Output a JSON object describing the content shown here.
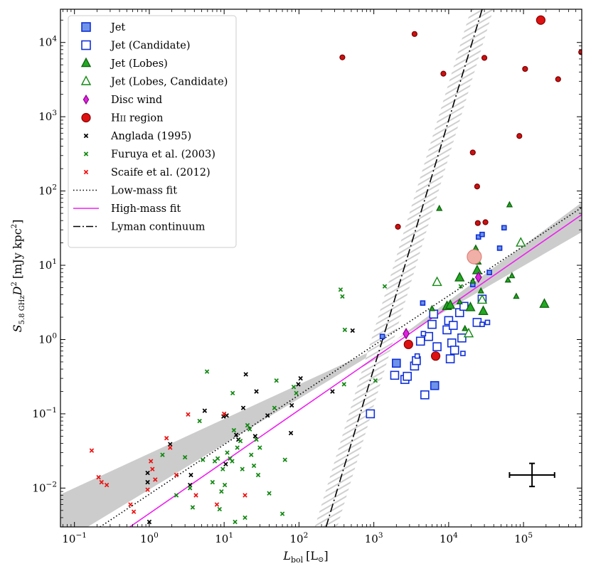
{
  "chart_data": {
    "type": "scatter",
    "xscale": "log",
    "yscale": "log",
    "xlabel": "L",
    "xlabel_sub": "bol",
    "xlabel_unit": "[L",
    "xlabel_unit_end": "]",
    "ylabel": "S",
    "ylabel_sub": "5.8 GHz",
    "ylabel_mid": "D",
    "ylabel_sup": "2",
    "ylabel_unit": "[mJy kpc",
    "ylabel_unit_sup": "2",
    "ylabel_unit_end": "]",
    "xlim": [
      0.065,
      600000
    ],
    "ylim": [
      0.003,
      28000
    ],
    "x_ticks": [
      {
        "value": 0.1,
        "base": "10",
        "exp": "−1"
      },
      {
        "value": 1,
        "base": "10",
        "exp": "0"
      },
      {
        "value": 10,
        "base": "10",
        "exp": "1"
      },
      {
        "value": 100,
        "base": "10",
        "exp": "2"
      },
      {
        "value": 1000,
        "base": "10",
        "exp": "3"
      },
      {
        "value": 10000,
        "base": "10",
        "exp": "4"
      },
      {
        "value": 100000,
        "base": "10",
        "exp": "5"
      }
    ],
    "y_ticks": [
      {
        "value": 0.01,
        "base": "10",
        "exp": "−2"
      },
      {
        "value": 0.1,
        "base": "10",
        "exp": "−1"
      },
      {
        "value": 1,
        "base": "10",
        "exp": "0"
      },
      {
        "value": 10,
        "base": "10",
        "exp": "1"
      },
      {
        "value": 100,
        "base": "10",
        "exp": "2"
      },
      {
        "value": 1000,
        "base": "10",
        "exp": "3"
      },
      {
        "value": 10000,
        "base": "10",
        "exp": "4"
      }
    ],
    "legend": {
      "location": "upper-left",
      "entries": [
        {
          "label": "Jet",
          "marker": "square",
          "fill": "#6f93e8",
          "stroke": "#1030d8"
        },
        {
          "label": "Jet (Candidate)",
          "marker": "square",
          "fill": "#ffffff",
          "stroke": "#1030d8"
        },
        {
          "label": "Jet (Lobes)",
          "marker": "triangle",
          "fill": "#22aa22",
          "stroke": "#116611"
        },
        {
          "label": "Jet (Lobes, Candidate)",
          "marker": "triangle",
          "fill": "#ffffff",
          "stroke": "#118811"
        },
        {
          "label": "Disc wind",
          "marker": "diamond",
          "fill": "#dd22dd",
          "stroke": "#880088"
        },
        {
          "label": "HII region",
          "marker": "circle",
          "fill": "#dd1111",
          "stroke": "#880000"
        },
        {
          "label": "Anglada (1995)",
          "marker": "x",
          "stroke": "#000000"
        },
        {
          "label": "Furuya et al. (2003)",
          "marker": "x",
          "stroke": "#118811"
        },
        {
          "label": "Scaife et al. (2012)",
          "marker": "x",
          "stroke": "#ee1111"
        },
        {
          "label": "Low-mass fit",
          "marker": "dotted-line",
          "stroke": "#000000"
        },
        {
          "label": "High-mass fit",
          "marker": "line",
          "stroke": "#ee22ee"
        },
        {
          "label": "Lyman continuum",
          "marker": "dashdot-line",
          "stroke": "#000000"
        }
      ]
    },
    "fits": {
      "low_mass": {
        "x_range": [
          0.22,
          600000
        ],
        "y_range": [
          0.003,
          60
        ],
        "color": "#000000",
        "style": "dotted"
      },
      "high_mass": {
        "x_range": [
          0.55,
          600000
        ],
        "y_range": [
          0.003,
          48
        ],
        "color": "#ee22ee",
        "style": "solid"
      },
      "low_mass_band": {
        "left": [
          0.065,
          0.0018,
          0.0082
        ],
        "pivot": [
          2000,
          1.0
        ],
        "right": [
          600000,
          28,
          70
        ]
      },
      "lyman_continuum": {
        "x_range": [
          230,
          28000
        ],
        "y_range": [
          0.003,
          28000
        ],
        "band_dex": 0.15,
        "color": "#000000",
        "style": "dashdot"
      }
    },
    "series": [
      {
        "name": "Jet",
        "marker": "square",
        "size": 11,
        "fill": "#6f93e8",
        "stroke": "#1030d8",
        "points": [
          [
            2000,
            0.48
          ],
          [
            6500,
            0.24
          ]
        ]
      },
      {
        "name": "Jet small",
        "marker": "square",
        "size": 6,
        "fill": "#6f93e8",
        "stroke": "#1030d8",
        "points": [
          [
            1300,
            1.1
          ],
          [
            4500,
            3.1
          ],
          [
            21000,
            5.5
          ],
          [
            25000,
            24
          ],
          [
            28000,
            26
          ],
          [
            35000,
            8
          ],
          [
            48000,
            17
          ],
          [
            55000,
            32
          ]
        ]
      },
      {
        "name": "Jet (Candidate)",
        "marker": "square",
        "size": 11,
        "fill": "#ffffff",
        "stroke": "#1030d8",
        "points": [
          [
            900,
            0.1
          ],
          [
            1900,
            0.33
          ],
          [
            2600,
            0.29
          ],
          [
            2800,
            0.32
          ],
          [
            3500,
            0.44
          ],
          [
            3700,
            0.52
          ],
          [
            4200,
            0.95
          ],
          [
            4800,
            0.18
          ],
          [
            5400,
            1.1
          ],
          [
            6000,
            1.6
          ],
          [
            6300,
            2.2
          ],
          [
            7000,
            0.8
          ],
          [
            9500,
            1.35
          ],
          [
            10000,
            1.8
          ],
          [
            10500,
            0.55
          ],
          [
            11000,
            0.9
          ],
          [
            11500,
            1.55
          ],
          [
            12000,
            0.72
          ],
          [
            14000,
            2.3
          ],
          [
            15000,
            1.05
          ],
          [
            16000,
            2.8
          ],
          [
            24000,
            1.7
          ],
          [
            28000,
            3.5
          ]
        ]
      },
      {
        "name": "Jet (Candidate) small",
        "marker": "square",
        "size": 6,
        "fill": "#ffffff",
        "stroke": "#1030d8",
        "points": [
          [
            3800,
            0.6
          ],
          [
            4600,
            1.2
          ],
          [
            15500,
            0.65
          ],
          [
            28000,
            1.6
          ],
          [
            33000,
            1.7
          ]
        ]
      },
      {
        "name": "Jet (Lobes)",
        "marker": "triangle",
        "size": 12,
        "fill": "#22aa22",
        "stroke": "#116611",
        "points": [
          [
            9500,
            2.8
          ],
          [
            10500,
            2.9
          ],
          [
            14000,
            6.8
          ],
          [
            19500,
            2.7
          ],
          [
            24000,
            8.5
          ],
          [
            29000,
            2.4
          ],
          [
            190000,
            3.0
          ]
        ]
      },
      {
        "name": "Jet (Lobes) small",
        "marker": "triangle",
        "size": 7,
        "fill": "#22aa22",
        "stroke": "#116611",
        "points": [
          [
            6000,
            2.6
          ],
          [
            7500,
            58
          ],
          [
            14000,
            3.2
          ],
          [
            16500,
            1.4
          ],
          [
            21000,
            6.1
          ],
          [
            23000,
            17
          ],
          [
            25000,
            11
          ],
          [
            27000,
            4.5
          ],
          [
            62000,
            6.3
          ],
          [
            65000,
            65
          ],
          [
            70000,
            7.2
          ],
          [
            80000,
            3.8
          ]
        ]
      },
      {
        "name": "Jet (Lobes, Candidate)",
        "marker": "triangle",
        "size": 12,
        "fill": "#ffffff",
        "stroke": "#118811",
        "points": [
          [
            7000,
            5.9
          ],
          [
            18500,
            1.2
          ],
          [
            28000,
            3.4
          ],
          [
            92000,
            20
          ]
        ]
      },
      {
        "name": "Disc wind",
        "marker": "diamond",
        "size": 14,
        "fill": "#dd22dd",
        "stroke": "#880088",
        "points": [
          [
            2700,
            1.2
          ],
          [
            25000,
            6.9
          ]
        ]
      },
      {
        "name": "HII region",
        "marker": "circle",
        "size": 12,
        "fill": "#dd1111",
        "stroke": "#880000",
        "points": [
          [
            2900,
            0.86
          ],
          [
            6700,
            0.6
          ],
          [
            170000,
            20000
          ]
        ]
      },
      {
        "name": "HII region small",
        "marker": "circle",
        "size": 7,
        "fill": "#cc1111",
        "stroke": "#770000",
        "points": [
          [
            380,
            6300
          ],
          [
            2100,
            33
          ],
          [
            3500,
            13000
          ],
          [
            8500,
            3800
          ],
          [
            21000,
            330
          ],
          [
            24000,
            115
          ],
          [
            24500,
            37
          ],
          [
            30000,
            6200
          ],
          [
            31000,
            38
          ],
          [
            88000,
            550
          ],
          [
            105000,
            4400
          ],
          [
            290000,
            3200
          ],
          [
            590000,
            7400
          ]
        ]
      },
      {
        "name": "HII region highlighted",
        "marker": "circle",
        "size": 20,
        "fill": "#f0b0a8",
        "stroke": "#e08078",
        "points": [
          [
            22000,
            13
          ]
        ]
      },
      {
        "name": "Anglada (1995)",
        "marker": "x",
        "stroke": "#000000",
        "points": [
          [
            0.95,
            0.016
          ],
          [
            0.95,
            0.012
          ],
          [
            1.0,
            0.0035
          ],
          [
            1.9,
            0.039
          ],
          [
            3.5,
            0.011
          ],
          [
            3.6,
            0.015
          ],
          [
            5.5,
            0.11
          ],
          [
            9.8,
            0.092
          ],
          [
            10.5,
            0.021
          ],
          [
            10.8,
            0.095
          ],
          [
            14.5,
            0.052
          ],
          [
            15.5,
            0.045
          ],
          [
            18,
            0.12
          ],
          [
            19.5,
            0.34
          ],
          [
            26,
            0.05
          ],
          [
            27,
            0.2
          ],
          [
            38,
            0.095
          ],
          [
            78,
            0.055
          ],
          [
            80,
            0.13
          ],
          [
            98,
            0.25
          ],
          [
            105,
            0.3
          ],
          [
            280,
            0.2
          ],
          [
            520,
            1.32
          ]
        ]
      },
      {
        "name": "Furuya et al. (2003)",
        "marker": "x",
        "stroke": "#118811",
        "points": [
          [
            1.5,
            0.028
          ],
          [
            2.3,
            0.008
          ],
          [
            3.0,
            0.026
          ],
          [
            3.5,
            0.01
          ],
          [
            3.8,
            0.0055
          ],
          [
            4.7,
            0.08
          ],
          [
            5.2,
            0.024
          ],
          [
            5.9,
            0.37
          ],
          [
            7.0,
            0.012
          ],
          [
            7.5,
            0.023
          ],
          [
            8.2,
            0.025
          ],
          [
            8.7,
            0.0052
          ],
          [
            9.2,
            0.009
          ],
          [
            9.6,
            0.018
          ],
          [
            10.2,
            0.011
          ],
          [
            11.0,
            0.03
          ],
          [
            12.0,
            0.025
          ],
          [
            12.8,
            0.023
          ],
          [
            13.0,
            0.19
          ],
          [
            13.5,
            0.06
          ],
          [
            14.0,
            0.0035
          ],
          [
            15.0,
            0.035
          ],
          [
            16.5,
            0.043
          ],
          [
            17.5,
            0.018
          ],
          [
            19.0,
            0.004
          ],
          [
            20.5,
            0.07
          ],
          [
            22.0,
            0.062
          ],
          [
            23.0,
            0.028
          ],
          [
            25.0,
            0.02
          ],
          [
            27.0,
            0.045
          ],
          [
            28.5,
            0.015
          ],
          [
            30.0,
            0.035
          ],
          [
            40.0,
            0.0085
          ],
          [
            47.0,
            0.12
          ],
          [
            50.0,
            0.28
          ],
          [
            60.0,
            0.0045
          ],
          [
            65.0,
            0.024
          ],
          [
            85.0,
            0.23
          ],
          [
            92.0,
            0.19
          ],
          [
            360.0,
            4.7
          ],
          [
            380.0,
            3.8
          ],
          [
            400.0,
            0.25
          ],
          [
            410.0,
            1.35
          ],
          [
            1050.0,
            0.28
          ],
          [
            1400.0,
            5.2
          ],
          [
            14500,
            5.2
          ]
        ]
      },
      {
        "name": "Scaife et al. (2012)",
        "marker": "x",
        "stroke": "#ee1111",
        "points": [
          [
            0.17,
            0.032
          ],
          [
            0.21,
            0.014
          ],
          [
            0.23,
            0.012
          ],
          [
            0.27,
            0.011
          ],
          [
            0.56,
            0.006
          ],
          [
            0.62,
            0.0048
          ],
          [
            0.95,
            0.0095
          ],
          [
            1.05,
            0.023
          ],
          [
            1.1,
            0.018
          ],
          [
            1.2,
            0.013
          ],
          [
            1.7,
            0.047
          ],
          [
            1.9,
            0.035
          ],
          [
            2.3,
            0.015
          ],
          [
            3.3,
            0.098
          ],
          [
            4.2,
            0.008
          ],
          [
            8.0,
            0.006
          ],
          [
            10.0,
            0.1
          ],
          [
            19.0,
            0.008
          ]
        ]
      }
    ],
    "error_bar": {
      "x": 130000,
      "y": 0.015,
      "x_range": [
        65000,
        260000
      ],
      "y_range": [
        0.0105,
        0.0215
      ]
    }
  }
}
